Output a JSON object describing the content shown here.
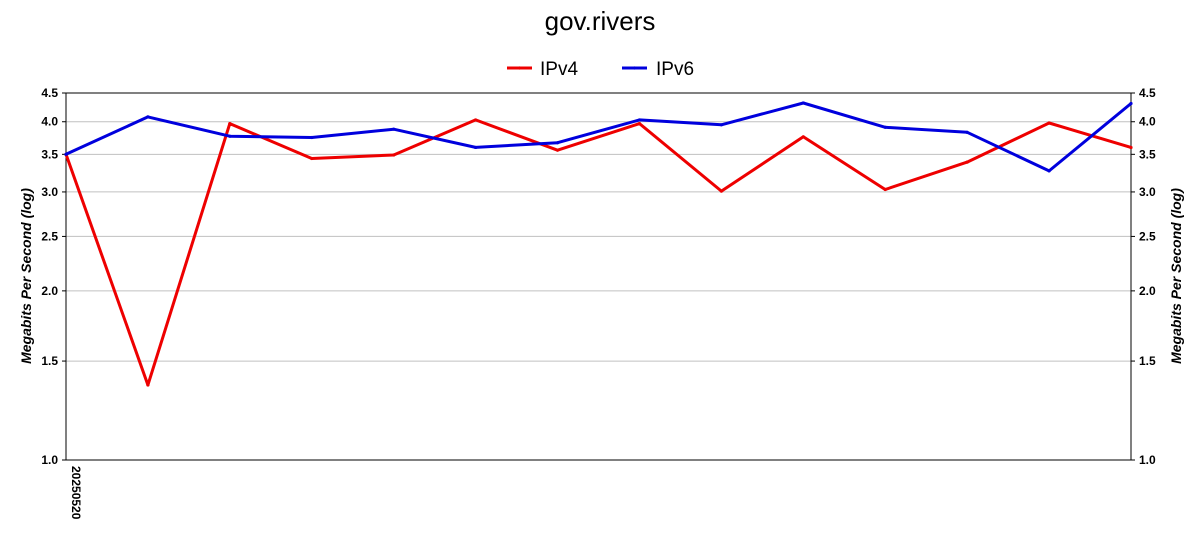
{
  "chart_data": {
    "type": "line",
    "title": "gov.rivers",
    "ylabel": "Megabits Per Second (log)",
    "y2label": "Megabits Per Second (log)",
    "yscale": "log",
    "ylim": [
      1.0,
      4.5
    ],
    "yticks": [
      "1.0",
      "1.5",
      "2.0",
      "2.5",
      "3.0",
      "3.5",
      "4.0",
      "4.5"
    ],
    "grid": true,
    "legend_position": "top-center",
    "x_first_label": "20250520",
    "series": [
      {
        "name": "IPv4",
        "color": "#ee0000",
        "values": [
          3.5,
          1.36,
          3.97,
          3.44,
          3.49,
          4.03,
          3.56,
          3.97,
          3.01,
          3.76,
          3.03,
          3.39,
          3.98,
          3.6
        ]
      },
      {
        "name": "IPv6",
        "color": "#0000dd",
        "values": [
          3.5,
          4.08,
          3.77,
          3.75,
          3.88,
          3.6,
          3.67,
          4.03,
          3.95,
          4.32,
          3.91,
          3.83,
          3.27,
          4.31
        ]
      }
    ]
  }
}
